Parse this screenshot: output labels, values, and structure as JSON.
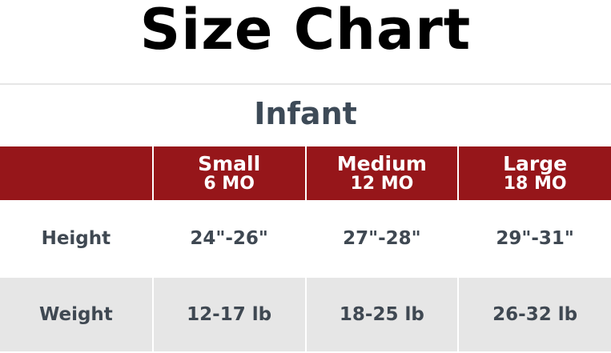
{
  "title": "Size Chart",
  "group": "Infant",
  "colors": {
    "header_bg": "#96161a",
    "text": "#3f4852",
    "alt_row_bg": "#e6e6e6"
  },
  "columns": [
    {
      "size": "Small",
      "age": "6 MO"
    },
    {
      "size": "Medium",
      "age": "12 MO"
    },
    {
      "size": "Large",
      "age": "18 MO"
    }
  ],
  "rows": [
    {
      "label": "Height",
      "values": [
        "24\"-26\"",
        "27\"-28\"",
        "29\"-31\""
      ]
    },
    {
      "label": "Weight",
      "values": [
        "12-17 lb",
        "18-25 lb",
        "26-32 lb"
      ]
    }
  ]
}
